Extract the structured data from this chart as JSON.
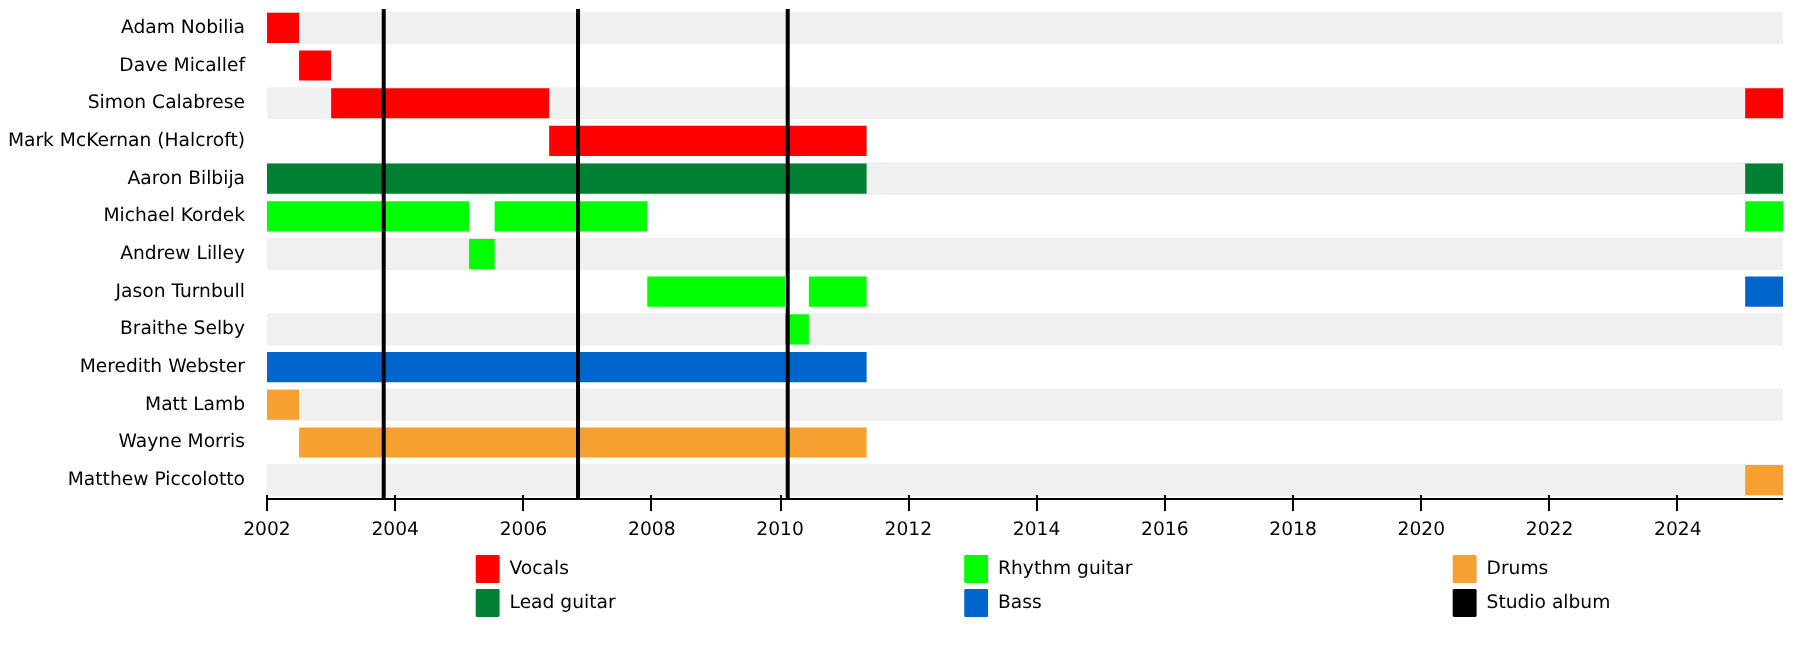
{
  "chart_data": {
    "type": "bar",
    "orientation": "horizontal",
    "categories": [
      "Adam Nobilia",
      "Dave Micallef",
      "Simon Calabrese",
      "Mark McKernan (Halcroft)",
      "Aaron Bilbija",
      "Michael Kordek",
      "Andrew Lilley",
      "Jason Turnbull",
      "Braithe Selby",
      "Meredith Webster",
      "Matt Lamb",
      "Wayne Morris",
      "Matthew Piccolotto"
    ],
    "series": [
      {
        "name": "Vocals",
        "color": "#ff0000",
        "base": [
          2002,
          2002.5,
          2003,
          2006.4,
          null,
          null,
          null,
          null,
          null,
          null,
          null,
          null,
          null
        ],
        "values": [
          0.5,
          0.5,
          3.4,
          4.95,
          null,
          null,
          null,
          null,
          null,
          null,
          null,
          null,
          null
        ]
      },
      {
        "color": "#ff0000",
        "base": [
          null,
          null,
          2025.05,
          null,
          null,
          null,
          null,
          null,
          null,
          null,
          null,
          null,
          null
        ],
        "values": [
          null,
          null,
          0.59,
          null,
          null,
          null,
          null,
          null,
          null,
          null,
          null,
          null,
          null
        ]
      },
      {
        "name": "Lead guitar",
        "color": "#008033",
        "base": [
          null,
          null,
          null,
          null,
          2002,
          null,
          null,
          null,
          null,
          null,
          null,
          null,
          null
        ],
        "values": [
          null,
          null,
          null,
          null,
          9.35,
          null,
          null,
          null,
          null,
          null,
          null,
          null,
          null
        ]
      },
      {
        "color": "#008033",
        "base": [
          null,
          null,
          null,
          null,
          2025.05,
          null,
          null,
          null,
          null,
          null,
          null,
          null,
          null
        ],
        "values": [
          null,
          null,
          null,
          null,
          0.59,
          null,
          null,
          null,
          null,
          null,
          null,
          null,
          null
        ]
      },
      {
        "name": "Rhythm guitar",
        "color": "#00ff00",
        "base": [
          null,
          null,
          null,
          null,
          null,
          2002,
          2005.15,
          2007.93,
          2010.08,
          null,
          null,
          null,
          null
        ],
        "values": [
          null,
          null,
          null,
          null,
          null,
          3.15,
          0.4,
          2.15,
          0.37,
          null,
          null,
          null,
          null
        ]
      },
      {
        "color": "#00ff00",
        "base": [
          null,
          null,
          null,
          null,
          null,
          2005.55,
          null,
          2010.45,
          null,
          null,
          null,
          null,
          null
        ],
        "values": [
          null,
          null,
          null,
          null,
          null,
          2.38,
          null,
          0.9,
          null,
          null,
          null,
          null,
          null
        ]
      },
      {
        "color": "#00ff00",
        "base": [
          null,
          null,
          null,
          null,
          null,
          2025.05,
          null,
          null,
          null,
          null,
          null,
          null,
          null
        ],
        "values": [
          null,
          null,
          null,
          null,
          null,
          0.59,
          null,
          null,
          null,
          null,
          null,
          null,
          null
        ]
      },
      {
        "name": "Bass",
        "color": "#0066cc",
        "base": [
          null,
          null,
          null,
          null,
          null,
          null,
          null,
          2025.05,
          null,
          2002,
          null,
          null,
          null
        ],
        "values": [
          null,
          null,
          null,
          null,
          null,
          null,
          null,
          0.59,
          null,
          9.35,
          null,
          null,
          null
        ]
      },
      {
        "name": "Drums",
        "color": "#f5a030",
        "base": [
          null,
          null,
          null,
          null,
          null,
          null,
          null,
          null,
          null,
          null,
          2002,
          2002.5,
          2025.05
        ],
        "values": [
          null,
          null,
          null,
          null,
          null,
          null,
          null,
          null,
          null,
          null,
          0.5,
          8.85,
          0.59
        ]
      }
    ],
    "ref_lines": [
      {
        "axis": "x",
        "value": 2003.82,
        "label": "Studio album",
        "color": "#000000"
      },
      {
        "axis": "x",
        "value": 2006.85,
        "color": "#000000"
      },
      {
        "axis": "x",
        "value": 2010.12,
        "color": "#000000"
      }
    ],
    "xlim": [
      2002,
      2025.64
    ],
    "xticks": [
      2002,
      2004,
      2006,
      2008,
      2010,
      2012,
      2014,
      2016,
      2018,
      2020,
      2022,
      2024
    ],
    "grid": false,
    "legend": "bottom"
  }
}
